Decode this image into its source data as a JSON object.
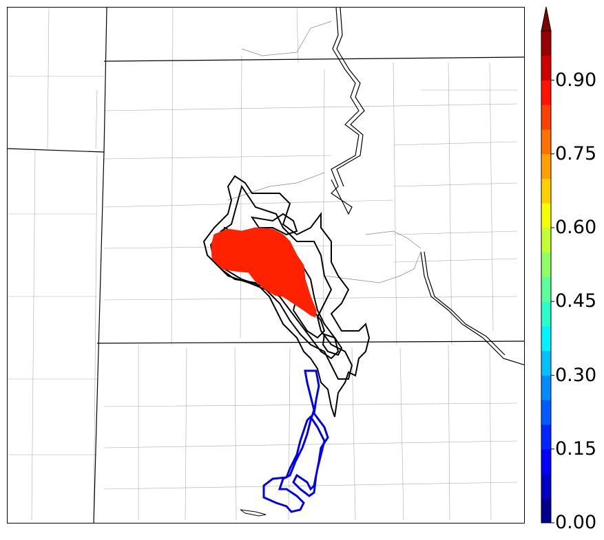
{
  "colorbar": {
    "ticks": [
      {
        "label": "0.00",
        "value": 0.0
      },
      {
        "label": "0.15",
        "value": 0.15
      },
      {
        "label": "0.30",
        "value": 0.3
      },
      {
        "label": "0.45",
        "value": 0.45
      },
      {
        "label": "0.60",
        "value": 0.6
      },
      {
        "label": "0.75",
        "value": 0.75
      },
      {
        "label": "0.90",
        "value": 0.9
      }
    ],
    "extend": "max",
    "range": [
      0.0,
      1.0
    ],
    "colors": [
      "#00008f",
      "#0000c6",
      "#0000ff",
      "#0026ff",
      "#005aff",
      "#008cff",
      "#00c0ff",
      "#00f4ff",
      "#29ffcd",
      "#5cff9a",
      "#8fff66",
      "#c2ff33",
      "#f6ff00",
      "#ffd000",
      "#ffa100",
      "#ff7100",
      "#ff4100",
      "#ff1200",
      "#d10000",
      "#980000"
    ],
    "extend_color": "#800000"
  },
  "map": {
    "filled_region_color": "#ff2200",
    "filled_region_probability": 0.87,
    "observed_outline_color": "#0000ee",
    "ensemble_outline_color": "#000000",
    "state_border_color": "#000000",
    "county_border_color": "#999999"
  }
}
